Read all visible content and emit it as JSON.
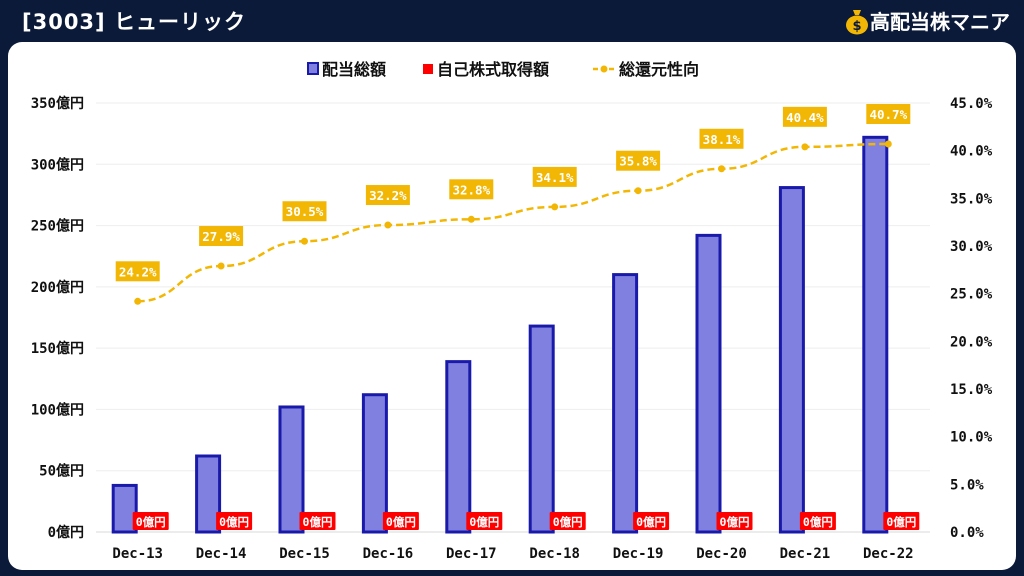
{
  "header": {
    "title": "[3003] ヒューリック",
    "brand_name": "高配当株マニア",
    "brand_icon": "money-bag-icon"
  },
  "colors": {
    "background": "#0c1a3a",
    "dividend_bar": "#8080e0",
    "dividend_bar_border": "#1a1aaa",
    "buyback": "#ff0000",
    "payout_line": "#f2b705"
  },
  "chart_data": {
    "type": "bar",
    "categories": [
      "Dec-13",
      "Dec-14",
      "Dec-15",
      "Dec-16",
      "Dec-17",
      "Dec-18",
      "Dec-19",
      "Dec-20",
      "Dec-21",
      "Dec-22"
    ],
    "series": [
      {
        "name": "配当総額",
        "type": "bar",
        "axis": "left",
        "values": [
          38,
          62,
          102,
          112,
          139,
          168,
          210,
          242,
          281,
          322
        ]
      },
      {
        "name": "自己株式取得額",
        "type": "bar",
        "axis": "left",
        "values": [
          0,
          0,
          0,
          0,
          0,
          0,
          0,
          0,
          0,
          0
        ],
        "labels": [
          "0億円",
          "0億円",
          "0億円",
          "0億円",
          "0億円",
          "0億円",
          "0億円",
          "0億円",
          "0億円",
          "0億円"
        ]
      },
      {
        "name": "総還元性向",
        "type": "line",
        "axis": "right",
        "values": [
          24.2,
          27.9,
          30.5,
          32.2,
          32.8,
          34.1,
          35.8,
          38.1,
          40.4,
          40.7
        ],
        "labels": [
          "24.2%",
          "27.9%",
          "30.5%",
          "32.2%",
          "32.8%",
          "34.1%",
          "35.8%",
          "38.1%",
          "40.4%",
          "40.7%"
        ]
      }
    ],
    "y_left": {
      "ylim": [
        0,
        350
      ],
      "ticks": [
        "0億円",
        "50億円",
        "100億円",
        "150億円",
        "200億円",
        "250億円",
        "300億円",
        "350億円"
      ]
    },
    "y_right": {
      "ylim": [
        0,
        45
      ],
      "ticks": [
        "0.0%",
        "5.0%",
        "10.0%",
        "15.0%",
        "20.0%",
        "25.0%",
        "30.0%",
        "35.0%",
        "40.0%",
        "45.0%"
      ]
    },
    "legend": {
      "position": "top-center",
      "entries": [
        "配当総額",
        "自己株式取得額",
        "総還元性向"
      ]
    },
    "grid": true
  }
}
